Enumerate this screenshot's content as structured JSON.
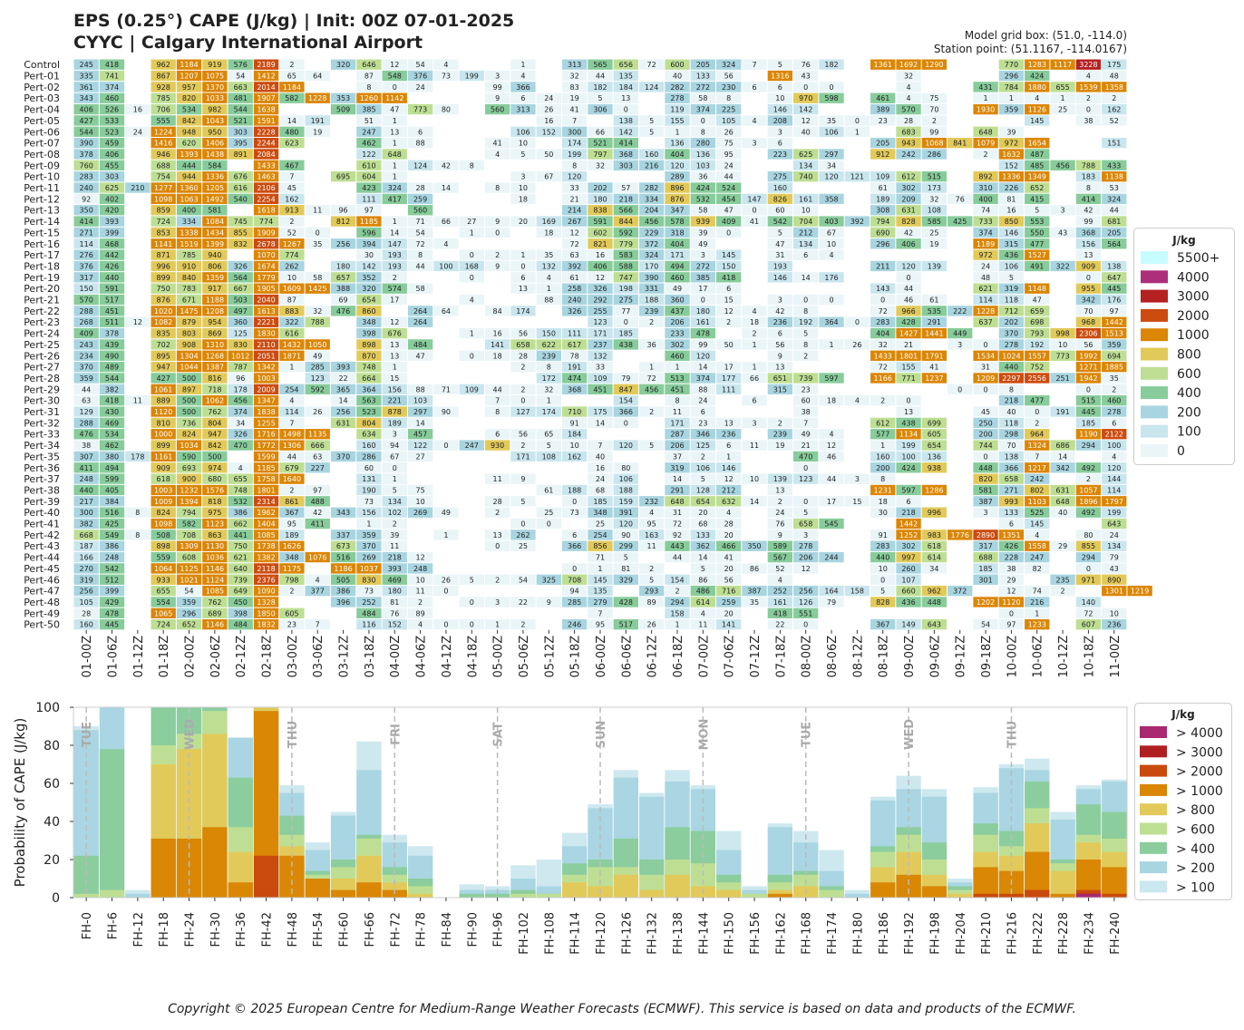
{
  "title": {
    "line1": "EPS (0.25°) CAPE (J/kg) | Init: 00Z 07-01-2025",
    "line2": "CYYC | Calgary International Airport",
    "grid_box": "Model grid box: (51.0, -114.0)",
    "station_point": "Station point: (51.1167, -114.0167)"
  },
  "copyright": "Copyright © 2025 European Centre for Medium-Range Weather Forecasts (ECMWF). This service is based on data and products of the ECMWF.",
  "chart_data": [
    {
      "type": "heatmap",
      "members": [
        "Control",
        "Pert-01",
        "Pert-02",
        "Pert-03",
        "Pert-04",
        "Pert-05",
        "Pert-06",
        "Pert-07",
        "Pert-08",
        "Pert-09",
        "Pert-10",
        "Pert-11",
        "Pert-12",
        "Pert-13",
        "Pert-14",
        "Pert-15",
        "Pert-16",
        "Pert-17",
        "Pert-18",
        "Pert-19",
        "Pert-20",
        "Pert-21",
        "Pert-22",
        "Pert-23",
        "Pert-24",
        "Pert-25",
        "Pert-26",
        "Pert-27",
        "Pert-28",
        "Pert-29",
        "Pert-30",
        "Pert-31",
        "Pert-32",
        "Pert-33",
        "Pert-34",
        "Pert-35",
        "Pert-36",
        "Pert-37",
        "Pert-38",
        "Pert-39",
        "Pert-40",
        "Pert-41",
        "Pert-42",
        "Pert-43",
        "Pert-44",
        "Pert-45",
        "Pert-46",
        "Pert-47",
        "Pert-48",
        "Pert-49",
        "Pert-50"
      ],
      "x_labels": [
        "01-00Z",
        "01-06Z",
        "01-12Z",
        "01-18Z",
        "02-00Z",
        "02-06Z",
        "02-12Z",
        "02-18Z",
        "03-00Z",
        "03-06Z",
        "03-12Z",
        "03-18Z",
        "04-00Z",
        "04-06Z",
        "04-12Z",
        "04-18Z",
        "05-00Z",
        "05-06Z",
        "05-12Z",
        "05-18Z",
        "06-00Z",
        "06-06Z",
        "06-12Z",
        "06-18Z",
        "07-00Z",
        "07-06Z",
        "07-12Z",
        "07-18Z",
        "08-00Z",
        "08-06Z",
        "08-12Z",
        "08-18Z",
        "09-00Z",
        "09-06Z",
        "09-12Z",
        "09-18Z",
        "10-00Z",
        "10-06Z",
        "10-12Z",
        "10-18Z",
        "11-00Z"
      ],
      "rows": [
        "245,418,,962,1184,919,576,2189,2,,320,646,12,54,4,,,1,,313,565,656,72,600,205,324,7,5,76,182,,1361,1692,1290,,,770,1283,1117,3228,175",
        "335,741,,867,1207,1075,54,1412,65,64,,87,548,376,73,199,3,4,,32,44,135,,40,133,56,,1316,43,,,,32,,,,296,424,,4,48",
        "361,374,,928,957,1370,663,2014,1184,,,8,0,24,,,99,366,,83,182,184,124,282,272,230,6,6,0,0,,,4,,,431,784,1880,655,1539,1358",
        "343,460,,785,820,1033,481,1907,582,1228,353,1260,1142,,,,9,6,24,19,5,13,,278,58,8,,10,970,598,,461,4,75,,1,1,4,1,2,2",
        "406,526,16,706,534,982,544,1638,,,509,385,47,773,80,,560,313,26,41,306,0,,119,374,225,,146,142,,,389,570,70,,1930,359,1126,25,0,162",
        "427,533,,555,842,1043,521,1591,14,191,,51,1,,,,,,16,7,,138,5,155,0,105,4,208,12,35,0,23,28,2,,,,145,,38,52",
        "544,523,24,1224,948,950,303,2228,480,19,,247,13,6,,,,106,152,300,66,142,5,1,8,26,,3,40,106,1,,683,99,,648,39,,,,",
        "390,459,,1416,620,1406,395,2244,623,,,462,1,88,,,41,10,,174,521,414,,136,280,75,3,6,,,,205,943,1068,841,1079,972,1654,,,151",
        "378,406,,946,1393,1438,891,2084,,,,122,648,,,,4,5,50,199,797,368,160,404,136,95,,223,625,297,,912,242,286,,2,1632,487,,,",
        "760,455,,688,444,584,,1433,467,,,610,1,124,42,8,,,,8,32,303,216,120,103,24,,,134,34,,,,,,,152,485,456,788,433",
        "283,303,,754,944,1336,676,1463,7,,695,604,1,,,,,3,67,120,,,,289,36,44,,275,740,120,121,109,612,515,,892,1336,1349,,183,1138",
        "240,625,210,1277,1360,1205,616,2106,45,,,423,324,28,14,,8,10,,33,202,57,282,896,424,524,,160,,,,61,302,173,,310,226,652,,8,53",
        "92,402,,1098,1063,1492,540,2254,162,,,111,417,259,,,,18,,21,180,218,334,876,532,454,147,826,161,358,,189,209,32,76,400,81,415,,414,324",
        "350,420,,859,400,581,,1618,913,11,96,97,,560,,,,,,214,838,566,204,347,58,47,0,60,10,,,308,631,108,,74,16,5,3,42,44",
        "414,393,,724,334,1084,745,774,2,,812,1185,1,71,66,27,9,20,169,267,591,844,456,578,939,409,41,542,704,403,392,794,828,585,425,733,850,553,,99,681",
        "271,399,,853,1338,1434,855,1909,52,0,,596,14,54,,1,0,,18,12,602,592,229,318,39,0,,5,212,67,,690,42,25,,374,146,550,43,368,205",
        "114,468,,1141,1519,1399,832,2678,1267,35,256,394,147,72,4,,,,,72,821,779,372,404,49,,,47,134,10,,296,406,19,,1189,315,477,,156,564",
        "276,442,,871,785,940,,1070,774,,,30,193,8,,0,2,1,35,63,16,583,324,171,3,145,,31,6,4,,,,,,972,436,1527,,13,",
        "376,426,,996,910,806,326,1674,262,,180,142,193,44,100,168,9,0,132,392,406,588,170,494,272,150,,193,,,,211,120,139,,24,106,491,322,909,138",
        "317,440,,899,840,1359,564,1779,10,58,657,352,2,,,0,,6,4,61,12,747,390,460,385,418,,146,14,176,,,0,,,48,5,,,0,647",
        "150,591,,750,783,917,667,1905,1609,1425,388,320,574,58,,,,13,1,258,326,198,331,49,17,6,,,,,,143,44,,,621,319,1148,,955,445",
        "570,517,,876,671,1188,503,2040,87,,69,654,17,,,4,,,88,240,292,275,188,360,0,15,,3,0,0,,0,46,61,,114,118,47,,342,176",
        "288,451,,1020,1475,1208,497,1613,883,32,476,860,,264,64,,84,174,,326,255,77,239,437,180,12,4,42,8,,,72,966,535,222,1228,712,659,,70,97",
        "268,511,12,1082,879,954,360,2221,322,788,,348,12,264,,,,,,,123,0,2,206,161,2,18,236,192,364,0,283,428,291,,637,202,698,,968,1442",
        "409,378,,835,803,869,125,1830,616,,,398,676,,,1,16,56,150,111,171,185,,233,478,,2,6,5,,,404,1427,1441,449,,370,793,998,2306,1513",
        "243,439,,702,908,1310,830,2110,1432,1050,,898,13,484,,,141,658,622,617,237,438,36,302,99,50,1,56,8,1,26,32,21,,3,0,278,192,10,56,359",
        "234,490,,895,1304,1268,1012,2051,1871,49,,870,13,47,,0,18,28,239,78,132,,,460,120,,,9,2,,,1433,1801,1791,,1534,1024,1557,773,1992,694",
        "370,489,,947,1044,1387,787,1342,1,285,393,748,1,,,,,2,8,191,33,,1,1,14,17,1,13,,,,72,155,41,,31,440,752,,1271,1885",
        "359,544,,427,500,816,96,1003,,123,22,664,15,,,,,,172,474,109,79,72,513,374,177,66,651,739,597,,1166,771,1237,,1209,2297,2556,251,1942,35",
        "44,382,,1061,897,718,178,2009,254,592,365,364,156,88,71,109,44,2,32,368,451,847,456,451,88,111,,315,23,,,,,,0,0,8,,,0,2",
        "63,418,11,889,500,1062,456,1347,4,,14,563,221,103,,,7,0,1,,,154,,8,24,,6,,60,18,4,2,0,,,,218,477,,515,460",
        "129,430,,1120,500,762,374,1838,114,26,256,523,878,297,90,,8,127,174,710,175,366,2,11,6,,,,38,,,,13,,,45,40,0,191,445,278",
        "288,469,,810,736,804,34,1255,7,,631,804,189,14,,,,,,91,14,0,,171,23,13,3,2,7,,,612,438,699,,250,118,2,,185,6",
        "476,534,,1000,824,947,326,1716,1498,1135,,634,3,457,,,6,56,65,184,,,,287,346,236,,239,49,4,,577,1134,605,,200,298,964,,1190,2122",
        "38,462,,899,1034,842,470,1772,1306,666,,160,94,122,0,247,930,2,5,10,7,120,5,206,125,6,11,19,21,12,,1,199,654,,744,70,1324,686,294,100",
        "307,380,178,1161,590,500,,1599,44,63,370,286,67,27,,,,171,108,162,40,,,37,2,1,,,470,46,,160,100,136,,0,138,7,14,,4",
        "411,494,,909,693,974,4,1185,679,227,,60,0,,,,,,,,16,80,,319,106,146,,,0,,,200,424,938,,448,366,1217,342,492,120",
        "248,599,,618,900,680,655,1758,1640,,,131,1,,,,11,9,,,24,106,,14,5,12,10,139,123,44,3,8,,,,820,658,242,,2,144",
        "440,405,,1003,1232,1576,748,1801,2,97,,190,5,75,,,,,61,188,68,188,,291,128,212,,13,,,,1231,597,1286,,581,271,802,631,1057,114",
        "217,384,,1009,1394,818,532,2314,861,488,,73,134,10,,,28,5,,0,185,159,232,648,654,632,14,2,0,17,15,18,6,,,387,993,1103,648,1896,1797",
        "300,516,8,824,794,975,386,1962,367,42,343,156,102,269,49,,2,,25,73,348,391,4,31,20,4,,24,5,,,30,218,996,,3,133,525,40,492,199",
        "382,425,,1098,582,1123,662,1404,95,411,,1,2,,,,,0,0,,25,120,95,72,68,28,,76,658,545,,,1442,,,,6,145,,,643",
        "668,549,8,508,708,863,441,1085,189,,337,359,39,,1,,13,262,,6,254,90,163,92,133,20,,9,3,,,91,1252,983,1776,2890,1351,4,,80,24",
        "187,386,,898,1309,1130,750,1738,1626,,673,370,11,,,,0,25,,366,856,299,11,443,362,466,350,589,278,,,283,302,618,,317,426,1558,29,855,134",
        "166,248,,559,608,1036,621,1382,348,1076,516,269,218,12,,,,,,,71,5,,44,14,41,,567,206,244,,440,997,614,,688,228,247,,294,79",
        "270,542,,1064,1125,1146,640,2118,1175,,1186,1037,393,248,,,,,,0,1,81,2,,5,20,86,52,12,,,10,260,34,,185,38,82,,0,43",
        "319,512,,933,1021,1124,739,2376,798,4,505,830,469,10,26,5,2,54,325,708,145,329,5,154,86,56,,4,,,,0,107,,,301,29,,235,971,890",
        "256,399,,655,54,1085,649,1090,2,377,386,73,180,11,0,,,,,94,135,,293,2,486,716,387,252,256,164,158,5,660,962,372,,12,74,2,,1301,1219",
        "105,429,,554,359,762,450,1328,,,396,252,81,2,,0,3,22,9,285,279,428,89,294,614,259,35,161,126,79,,828,436,448,,1202,1120,216,,140,",
        "28,478,,1065,296,689,398,1850,605,,,484,76,89,,,,,,,7,,,158,4,20,,418,551,,,,,,,,0,1,,72,10",
        "160,445,,724,652,1146,484,1832,23,7,,116,152,4,0,0,1,2,,246,95,517,26,1,11,141,,22,0,,,367,149,643,,54,97,1233,,607,236"
      ],
      "colorbar": {
        "title": "J/kg",
        "levels": [
          "5500+",
          "4000",
          "3000",
          "2000",
          "1000",
          "800",
          "600",
          "400",
          "200",
          "100",
          "0"
        ]
      }
    },
    {
      "type": "bar",
      "ylabel": "Probability of CAPE (J/kg)",
      "ylim": [
        0,
        100
      ],
      "yticks": [
        0,
        20,
        40,
        60,
        80,
        100
      ],
      "categories": [
        "FH-0",
        "FH-6",
        "FH-12",
        "FH-18",
        "FH-24",
        "FH-30",
        "FH-36",
        "FH-42",
        "FH-48",
        "FH-54",
        "FH-60",
        "FH-66",
        "FH-72",
        "FH-78",
        "FH-84",
        "FH-90",
        "FH-96",
        "FH-102",
        "FH-108",
        "FH-114",
        "FH-120",
        "FH-126",
        "FH-132",
        "FH-138",
        "FH-144",
        "FH-150",
        "FH-156",
        "FH-162",
        "FH-168",
        "FH-174",
        "FH-180",
        "FH-186",
        "FH-192",
        "FH-198",
        "FH-204",
        "FH-210",
        "FH-216",
        "FH-222",
        "FH-228",
        "FH-234",
        "FH-240"
      ],
      "day_markers": [
        {
          "label": "TUE",
          "index": 0.5
        },
        {
          "label": "WED",
          "index": 4.5
        },
        {
          "label": "THU",
          "index": 8.5
        },
        {
          "label": "FRI",
          "index": 12.5
        },
        {
          "label": "SAT",
          "index": 16.5
        },
        {
          "label": "SUN",
          "index": 20.5
        },
        {
          "label": "MON",
          "index": 24.5
        },
        {
          "label": "TUE",
          "index": 28.5
        },
        {
          "label": "WED",
          "index": 32.5
        },
        {
          "label": "THU",
          "index": 36.5
        }
      ],
      "legend": {
        "title": "J/kg",
        "position": "right"
      },
      "series": [
        {
          "name": "> 100",
          "values": [
            90,
            100,
            4,
            100,
            100,
            100,
            84,
            100,
            59,
            29,
            45,
            82,
            33,
            27,
            0,
            7,
            6,
            17,
            20,
            34,
            49,
            67,
            55,
            67,
            59,
            35,
            6,
            39,
            35,
            25,
            4,
            53,
            64,
            57,
            10,
            58,
            70,
            73,
            45,
            59,
            62
          ]
        },
        {
          "name": "> 200",
          "values": [
            88,
            100,
            2,
            100,
            100,
            100,
            84,
            100,
            55,
            25,
            43,
            67,
            29,
            22,
            0,
            4,
            4,
            10,
            6,
            27,
            47,
            63,
            53,
            61,
            57,
            25,
            4,
            37,
            29,
            14,
            2,
            51,
            57,
            53,
            8,
            55,
            68,
            67,
            41,
            57,
            61
          ]
        },
        {
          "name": "> 400",
          "values": [
            22,
            78,
            0,
            100,
            100,
            100,
            63,
            100,
            43,
            14,
            20,
            33,
            16,
            10,
            0,
            2,
            2,
            4,
            2,
            18,
            20,
            31,
            20,
            37,
            35,
            12,
            2,
            12,
            14,
            6,
            0,
            27,
            37,
            29,
            6,
            39,
            35,
            61,
            20,
            49,
            45
          ]
        },
        {
          "name": "> 600",
          "values": [
            2,
            4,
            0,
            80,
            86,
            98,
            37,
            100,
            33,
            12,
            16,
            31,
            12,
            6,
            0,
            0,
            0,
            2,
            2,
            12,
            16,
            16,
            12,
            20,
            18,
            8,
            2,
            8,
            12,
            4,
            0,
            24,
            33,
            20,
            4,
            33,
            27,
            47,
            18,
            33,
            31
          ]
        },
        {
          "name": "> 800",
          "values": [
            0,
            0,
            0,
            70,
            78,
            86,
            24,
            100,
            27,
            10,
            10,
            22,
            8,
            2,
            0,
            0,
            0,
            0,
            0,
            8,
            6,
            12,
            4,
            12,
            6,
            4,
            0,
            4,
            6,
            0,
            0,
            16,
            24,
            12,
            2,
            24,
            22,
            39,
            14,
            29,
            24
          ]
        },
        {
          "name": "> 1000",
          "values": [
            0,
            0,
            0,
            31,
            31,
            37,
            8,
            98,
            22,
            10,
            4,
            8,
            4,
            0,
            0,
            0,
            0,
            0,
            0,
            0,
            0,
            0,
            0,
            0,
            0,
            0,
            0,
            2,
            0,
            0,
            0,
            8,
            12,
            6,
            0,
            16,
            14,
            24,
            2,
            20,
            16
          ]
        },
        {
          "name": "> 2000",
          "values": [
            0,
            0,
            0,
            0,
            0,
            0,
            0,
            22,
            0,
            0,
            0,
            0,
            0,
            0,
            0,
            0,
            0,
            0,
            0,
            0,
            0,
            0,
            0,
            0,
            0,
            0,
            0,
            0,
            0,
            0,
            0,
            0,
            0,
            0,
            0,
            2,
            2,
            4,
            0,
            4,
            2
          ]
        },
        {
          "name": "> 3000",
          "values": [
            0,
            0,
            0,
            0,
            0,
            0,
            0,
            0,
            0,
            0,
            0,
            0,
            0,
            0,
            0,
            0,
            0,
            0,
            0,
            0,
            0,
            0,
            0,
            0,
            0,
            0,
            0,
            0,
            0,
            0,
            0,
            0,
            0,
            0,
            0,
            0,
            0,
            0,
            0,
            2,
            0
          ]
        },
        {
          "name": "> 4000",
          "values": [
            0,
            0,
            0,
            0,
            0,
            0,
            0,
            0,
            0,
            0,
            0,
            0,
            0,
            0,
            0,
            0,
            0,
            0,
            0,
            0,
            0,
            0,
            0,
            0,
            0,
            0,
            0,
            0,
            0,
            0,
            0,
            0,
            0,
            0,
            0,
            0,
            0,
            0,
            0,
            2,
            0
          ]
        }
      ]
    }
  ],
  "colors": {
    "c5500": "#c8fdff",
    "c4000": "#ad2f7c",
    "c3000": "#b52021",
    "c2000": "#cc4b0e",
    "c1000": "#db8605",
    "c800": "#e2ca5a",
    "c600": "#bedf93",
    "c400": "#87cc9a",
    "c200": "#a8d5e0",
    "c100": "#c9e6ee",
    "c0": "#eaf5f8",
    "b100": "#cbe7ef",
    "b200": "#a7d5e0",
    "b400": "#8ccd9e",
    "b600": "#bedf93",
    "b800": "#e2ca5a",
    "b1000": "#d98705",
    "b2000": "#c94a0c",
    "b3000": "#b01f20",
    "b4000": "#a8296f"
  }
}
